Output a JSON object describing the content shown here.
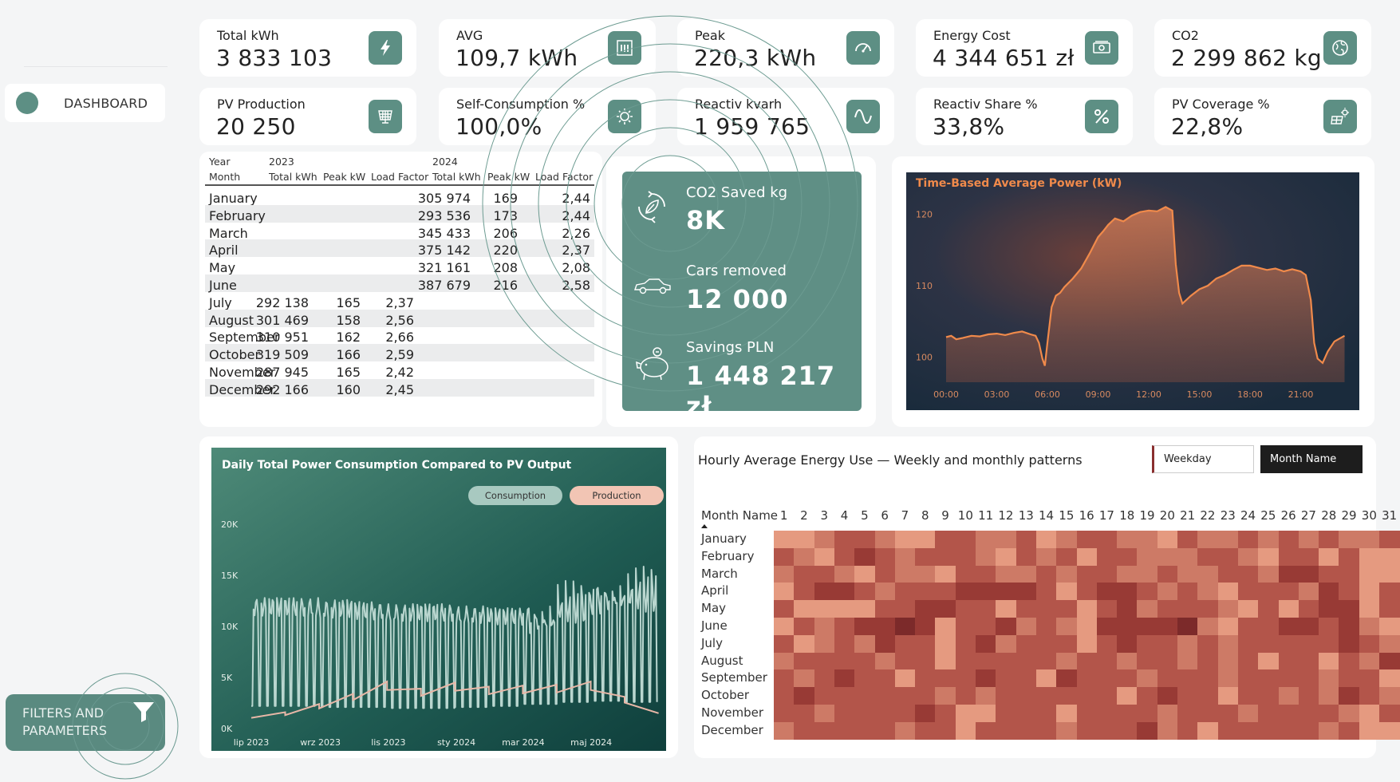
{
  "nav": {
    "dashboard_label": "DASHBOARD",
    "filters_line1": "FILTERS AND",
    "filters_line2": "PARAMETERS"
  },
  "kpis": [
    {
      "label": "Total kWh",
      "value": "3 833 103",
      "icon": "lightning-icon"
    },
    {
      "label": "AVG",
      "value": "109,7 kWh",
      "icon": "bar-chart-icon"
    },
    {
      "label": "Peak",
      "value": "220,3 kWh",
      "icon": "gauge-icon"
    },
    {
      "label": "Energy Cost",
      "value": "4 344 651 zł",
      "icon": "money-icon"
    },
    {
      "label": "CO2",
      "value": "2 299 862 kg",
      "icon": "globe-icon"
    },
    {
      "label": "PV Production",
      "value": "20 250",
      "icon": "solar-panel-icon"
    },
    {
      "label": "Self-Consumption %",
      "value": "100,0%",
      "icon": "sun-icon"
    },
    {
      "label": "Reactiv kvarh",
      "value": "1 959 765",
      "icon": "sine-wave-icon"
    },
    {
      "label": "Reactiv Share %",
      "value": "33,8%",
      "icon": "percent-icon"
    },
    {
      "label": "PV Coverage %",
      "value": "22,8%",
      "icon": "solar-sun-icon"
    }
  ],
  "matrix": {
    "year_label": "Year",
    "month_label": "Month",
    "year_2023": "2023",
    "year_2024": "2024",
    "cols": [
      "Total kWh",
      "Peak kW",
      "Load Factor",
      "Total kWh",
      "Peak kW",
      "Load Factor"
    ],
    "rows": [
      {
        "month": "January",
        "t23": "",
        "p23": "",
        "l23": "",
        "t24": "305 974",
        "p24": "169",
        "l24": "2,44"
      },
      {
        "month": "February",
        "t23": "",
        "p23": "",
        "l23": "",
        "t24": "293 536",
        "p24": "173",
        "l24": "2,44"
      },
      {
        "month": "March",
        "t23": "",
        "p23": "",
        "l23": "",
        "t24": "345 433",
        "p24": "206",
        "l24": "2,26"
      },
      {
        "month": "April",
        "t23": "",
        "p23": "",
        "l23": "",
        "t24": "375 142",
        "p24": "220",
        "l24": "2,37"
      },
      {
        "month": "May",
        "t23": "",
        "p23": "",
        "l23": "",
        "t24": "321 161",
        "p24": "208",
        "l24": "2,08"
      },
      {
        "month": "June",
        "t23": "",
        "p23": "",
        "l23": "",
        "t24": "387 679",
        "p24": "216",
        "l24": "2,58"
      },
      {
        "month": "July",
        "t23": "292 138",
        "p23": "165",
        "l23": "2,37",
        "t24": "",
        "p24": "",
        "l24": ""
      },
      {
        "month": "August",
        "t23": "301 469",
        "p23": "158",
        "l23": "2,56",
        "t24": "",
        "p24": "",
        "l24": ""
      },
      {
        "month": "September",
        "t23": "310 951",
        "p23": "162",
        "l23": "2,66",
        "t24": "",
        "p24": "",
        "l24": ""
      },
      {
        "month": "October",
        "t23": "319 509",
        "p23": "166",
        "l23": "2,59",
        "t24": "",
        "p24": "",
        "l24": ""
      },
      {
        "month": "November",
        "t23": "287 945",
        "p23": "165",
        "l23": "2,42",
        "t24": "",
        "p24": "",
        "l24": ""
      },
      {
        "month": "December",
        "t23": "292 166",
        "p23": "160",
        "l23": "2,45",
        "t24": "",
        "p24": "",
        "l24": ""
      }
    ]
  },
  "impact": {
    "co2_label": "CO2 Saved kg",
    "co2_value": "8K",
    "cars_label": "Cars removed",
    "cars_value": "12 000",
    "savings_label": "Savings PLN",
    "savings_value": "1 448 217 zł"
  },
  "heatmap": {
    "title": "Hourly Average Energy Use — Weekly and monthly patterns",
    "slicer_weekday": "Weekday",
    "slicer_month": "Month Name",
    "row_header": "Month Name",
    "colors": [
      "#f2b8a0",
      "#e59a80",
      "#cd7a66",
      "#b3554a",
      "#983a35",
      "#7c2a2a"
    ]
  },
  "colors": {
    "teal": "#5d8f84",
    "orange": "#f08a4b",
    "pink": "#f2c5b4"
  },
  "chart_data": [
    {
      "type": "area",
      "title": "Time-Based Average Power (kW)",
      "x_ticks": [
        "00:00",
        "03:00",
        "06:00",
        "09:00",
        "12:00",
        "15:00",
        "18:00",
        "21:00"
      ],
      "y_ticks": [
        "100",
        "110",
        "120"
      ],
      "ylim": [
        96.5,
        122.5
      ],
      "x_hours": [
        0,
        0.3,
        0.6,
        1,
        1.5,
        2,
        2.5,
        3,
        3.5,
        4,
        4.5,
        5,
        5.3,
        5.5,
        5.7,
        5.85,
        6,
        6.25,
        6.5,
        6.75,
        7,
        7.5,
        8,
        8.5,
        9,
        9.3,
        9.6,
        10,
        10.5,
        11,
        11.5,
        12,
        12.5,
        13,
        13.4,
        13.6,
        13.8,
        14,
        14.5,
        15,
        15.5,
        16,
        16.5,
        17,
        17.5,
        18,
        18.5,
        19,
        19.5,
        20,
        20.5,
        21,
        21.3,
        21.6,
        21.8,
        22,
        22.3,
        22.6,
        23,
        23.3,
        23.6
      ],
      "values": [
        102.8,
        103.0,
        102.5,
        102.7,
        103.0,
        102.9,
        103.2,
        103.3,
        103.1,
        103.4,
        103.6,
        103.2,
        103.0,
        102.0,
        99.8,
        98.8,
        102.0,
        107.0,
        108.6,
        109.0,
        109.8,
        111.0,
        112.4,
        114.5,
        116.8,
        117.6,
        118.5,
        119.4,
        119.0,
        119.8,
        120.3,
        120.5,
        120.4,
        121.0,
        120.5,
        113.0,
        109.0,
        107.5,
        108.6,
        109.5,
        110.0,
        111.0,
        111.5,
        112.2,
        112.8,
        112.8,
        112.5,
        112.2,
        112.4,
        112.0,
        112.3,
        112.0,
        111.5,
        108.0,
        102.0,
        99.8,
        99.2,
        100.8,
        102.2,
        102.6,
        103.0
      ]
    },
    {
      "type": "line",
      "title": "Daily Total Power Consumption Compared to PV Output",
      "legend": [
        "Consumption",
        "Production"
      ],
      "legend_position": "top-right",
      "x_ticks": [
        "lip 2023",
        "wrz 2023",
        "lis 2023",
        "sty 2024",
        "mar 2024",
        "maj 2024"
      ],
      "x_range": [
        "2023-07-01",
        "2024-06-30"
      ],
      "y_ticks": [
        "0K",
        "5K",
        "10K",
        "15K",
        "20K"
      ],
      "ylim": [
        0,
        20000
      ],
      "series": [
        {
          "name": "Consumption",
          "weekday_level": [
            12800,
            12800,
            12600,
            12400,
            12200,
            12200,
            12000,
            11800,
            12000,
            13500,
            14500,
            15000
          ],
          "weekend_level": [
            2200,
            2200,
            2100,
            2100,
            2000,
            2000,
            2100,
            2200,
            2400,
            2600,
            2700,
            2600
          ]
        },
        {
          "name": "Production",
          "months": [
            "2023-07",
            "2023-08",
            "2023-09",
            "2023-10",
            "2023-11",
            "2023-12",
            "2024-01",
            "2024-02",
            "2024-03",
            "2024-04",
            "2024-05",
            "2024-06"
          ],
          "values": [
            1600,
            2400,
            3400,
            4600,
            3900,
            4500,
            4100,
            4200,
            4300,
            4600,
            3100,
            1500
          ]
        }
      ]
    },
    {
      "type": "heatmap",
      "title": "Hourly Average Energy Use — Weekly and monthly patterns",
      "x": [
        "1",
        "2",
        "3",
        "4",
        "5",
        "6",
        "7",
        "8",
        "9",
        "10",
        "11",
        "12",
        "13",
        "14",
        "15",
        "16",
        "17",
        "18",
        "19",
        "20",
        "21",
        "22",
        "23",
        "24",
        "25",
        "26",
        "27",
        "28",
        "29",
        "30",
        "31"
      ],
      "y": [
        "January",
        "February",
        "March",
        "April",
        "May",
        "June",
        "July",
        "August",
        "September",
        "October",
        "November",
        "December"
      ],
      "intensity_levels": "0 (light) to 5 (dark)",
      "values": [
        [
          1,
          1,
          2,
          3,
          3,
          2,
          1,
          1,
          3,
          3,
          2,
          2,
          3,
          1,
          2,
          3,
          3,
          2,
          2,
          1,
          3,
          2,
          2,
          3,
          2,
          3,
          2,
          3,
          2,
          2,
          3
        ],
        [
          3,
          2,
          1,
          3,
          4,
          3,
          2,
          3,
          3,
          3,
          2,
          1,
          3,
          2,
          3,
          1,
          3,
          3,
          2,
          2,
          2,
          3,
          3,
          2,
          1,
          3,
          3,
          1,
          3,
          1,
          1
        ],
        [
          2,
          3,
          3,
          2,
          1,
          3,
          2,
          2,
          1,
          3,
          3,
          2,
          2,
          3,
          2,
          3,
          3,
          2,
          2,
          3,
          2,
          2,
          3,
          3,
          2,
          4,
          4,
          3,
          3,
          1,
          1
        ],
        [
          1,
          3,
          4,
          4,
          3,
          2,
          3,
          3,
          3,
          4,
          4,
          4,
          4,
          3,
          1,
          3,
          4,
          4,
          3,
          2,
          3,
          2,
          1,
          3,
          3,
          3,
          2,
          4,
          3,
          1,
          3
        ],
        [
          3,
          1,
          1,
          1,
          1,
          3,
          3,
          4,
          4,
          3,
          3,
          1,
          3,
          3,
          3,
          1,
          3,
          4,
          2,
          3,
          3,
          3,
          2,
          1,
          3,
          1,
          3,
          4,
          4,
          1,
          3
        ],
        [
          1,
          3,
          2,
          3,
          4,
          4,
          5,
          4,
          1,
          3,
          3,
          4,
          2,
          3,
          2,
          1,
          4,
          4,
          4,
          4,
          5,
          2,
          1,
          3,
          3,
          4,
          4,
          3,
          4,
          2,
          1
        ],
        [
          3,
          1,
          2,
          3,
          2,
          4,
          3,
          3,
          1,
          3,
          4,
          2,
          3,
          3,
          3,
          1,
          3,
          4,
          3,
          3,
          2,
          3,
          2,
          3,
          3,
          3,
          3,
          3,
          4,
          3,
          2
        ],
        [
          2,
          3,
          3,
          3,
          3,
          2,
          3,
          3,
          1,
          3,
          3,
          3,
          3,
          3,
          2,
          3,
          3,
          2,
          3,
          3,
          2,
          3,
          2,
          3,
          1,
          3,
          3,
          1,
          3,
          2,
          4
        ],
        [
          3,
          2,
          3,
          4,
          3,
          3,
          1,
          3,
          3,
          3,
          4,
          3,
          3,
          1,
          4,
          3,
          3,
          3,
          2,
          3,
          3,
          3,
          2,
          3,
          3,
          3,
          3,
          2,
          3,
          3,
          1
        ],
        [
          3,
          4,
          3,
          3,
          3,
          3,
          3,
          3,
          2,
          3,
          2,
          3,
          3,
          3,
          3,
          3,
          3,
          1,
          3,
          4,
          3,
          3,
          1,
          3,
          3,
          2,
          3,
          2,
          4,
          3,
          2
        ],
        [
          3,
          3,
          2,
          3,
          3,
          3,
          3,
          4,
          3,
          1,
          1,
          3,
          3,
          3,
          1,
          3,
          3,
          3,
          3,
          2,
          3,
          3,
          3,
          2,
          3,
          3,
          3,
          3,
          2,
          1,
          3
        ],
        [
          2,
          3,
          3,
          3,
          3,
          3,
          2,
          3,
          3,
          1,
          3,
          3,
          3,
          3,
          2,
          3,
          3,
          3,
          4,
          2,
          3,
          1,
          3,
          3,
          3,
          3,
          3,
          2,
          3,
          1,
          1
        ]
      ]
    }
  ]
}
